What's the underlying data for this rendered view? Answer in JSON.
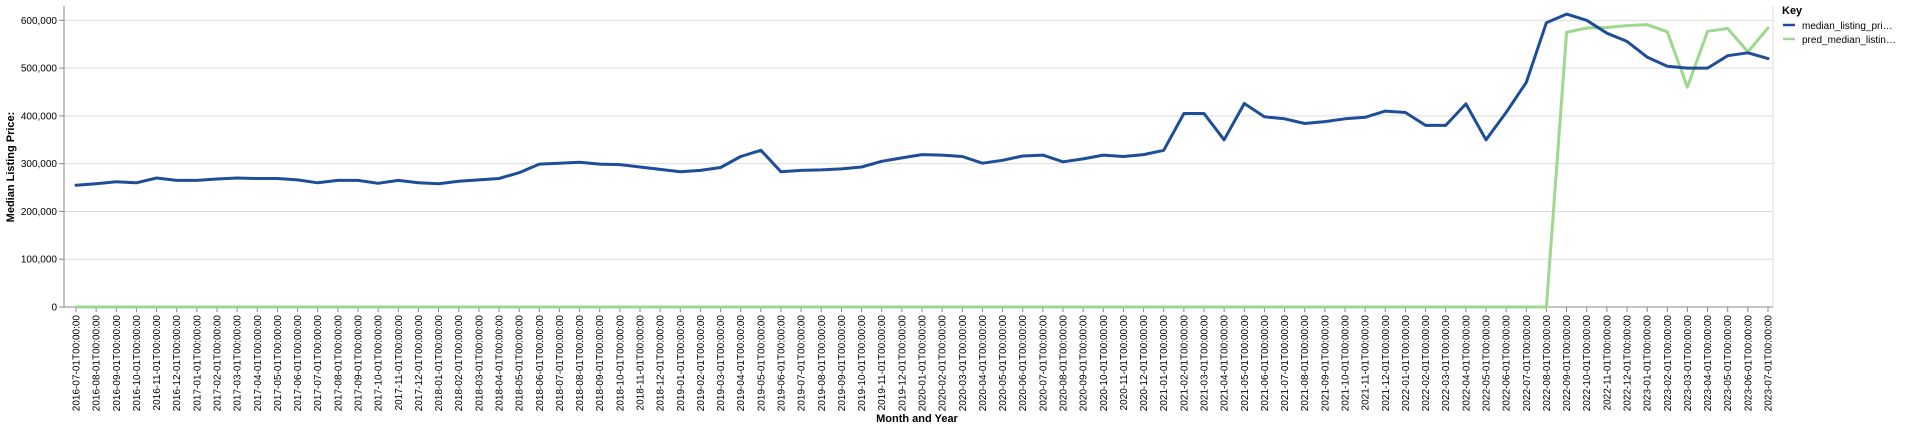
{
  "chart_data": {
    "type": "line",
    "xlabel": "Month and Year",
    "ylabel": "Median Listing Price:",
    "ylim": [
      0,
      630000
    ],
    "yticks": [
      0,
      100000,
      200000,
      300000,
      400000,
      500000,
      600000
    ],
    "ytick_labels": [
      "0",
      "100,000",
      "200,000",
      "300,000",
      "400,000",
      "500,000",
      "600,000"
    ],
    "grid": true,
    "legend": {
      "title": "Key",
      "placement": "top-right",
      "entries": [
        "median_listing_pri…",
        "pred_median_listin…"
      ]
    },
    "x": [
      "2016-07-01T00:00:00",
      "2016-08-01T00:00:00",
      "2016-09-01T00:00:00",
      "2016-10-01T00:00:00",
      "2016-11-01T00:00:00",
      "2016-12-01T00:00:00",
      "2017-01-01T00:00:00",
      "2017-02-01T00:00:00",
      "2017-03-01T00:00:00",
      "2017-04-01T00:00:00",
      "2017-05-01T00:00:00",
      "2017-06-01T00:00:00",
      "2017-07-01T00:00:00",
      "2017-08-01T00:00:00",
      "2017-09-01T00:00:00",
      "2017-10-01T00:00:00",
      "2017-11-01T00:00:00",
      "2017-12-01T00:00:00",
      "2018-01-01T00:00:00",
      "2018-02-01T00:00:00",
      "2018-03-01T00:00:00",
      "2018-04-01T00:00:00",
      "2018-05-01T00:00:00",
      "2018-06-01T00:00:00",
      "2018-07-01T00:00:00",
      "2018-08-01T00:00:00",
      "2018-09-01T00:00:00",
      "2018-10-01T00:00:00",
      "2018-11-01T00:00:00",
      "2018-12-01T00:00:00",
      "2019-01-01T00:00:00",
      "2019-02-01T00:00:00",
      "2019-03-01T00:00:00",
      "2019-04-01T00:00:00",
      "2019-05-01T00:00:00",
      "2019-06-01T00:00:00",
      "2019-07-01T00:00:00",
      "2019-08-01T00:00:00",
      "2019-09-01T00:00:00",
      "2019-10-01T00:00:00",
      "2019-11-01T00:00:00",
      "2019-12-01T00:00:00",
      "2020-01-01T00:00:00",
      "2020-02-01T00:00:00",
      "2020-03-01T00:00:00",
      "2020-04-01T00:00:00",
      "2020-05-01T00:00:00",
      "2020-06-01T00:00:00",
      "2020-07-01T00:00:00",
      "2020-08-01T00:00:00",
      "2020-09-01T00:00:00",
      "2020-10-01T00:00:00",
      "2020-11-01T00:00:00",
      "2020-12-01T00:00:00",
      "2021-01-01T00:00:00",
      "2021-02-01T00:00:00",
      "2021-03-01T00:00:00",
      "2021-04-01T00:00:00",
      "2021-05-01T00:00:00",
      "2021-06-01T00:00:00",
      "2021-07-01T00:00:00",
      "2021-08-01T00:00:00",
      "2021-09-01T00:00:00",
      "2021-10-01T00:00:00",
      "2021-11-01T00:00:00",
      "2021-12-01T00:00:00",
      "2022-01-01T00:00:00",
      "2022-02-01T00:00:00",
      "2022-03-01T00:00:00",
      "2022-04-01T00:00:00",
      "2022-05-01T00:00:00",
      "2022-06-01T00:00:00",
      "2022-07-01T00:00:00",
      "2022-08-01T00:00:00",
      "2022-09-01T00:00:00",
      "2022-10-01T00:00:00",
      "2022-11-01T00:00:00",
      "2022-12-01T00:00:00",
      "2023-01-01T00:00:00",
      "2023-02-01T00:00:00",
      "2023-03-01T00:00:00",
      "2023-04-01T00:00:00",
      "2023-05-01T00:00:00",
      "2023-06-01T00:00:00",
      "2023-07-01T00:00:00"
    ],
    "series": [
      {
        "name": "median_listing_pri…",
        "color": "#1f4e99",
        "values": [
          255000,
          258000,
          262000,
          260000,
          270000,
          265000,
          265000,
          268000,
          270000,
          269000,
          269000,
          266000,
          260000,
          265000,
          265000,
          259000,
          265000,
          260000,
          258000,
          263000,
          266000,
          269000,
          281000,
          299000,
          301000,
          303000,
          299000,
          298000,
          293000,
          288000,
          283000,
          286000,
          292000,
          315000,
          328000,
          283000,
          286000,
          287000,
          289000,
          293000,
          305000,
          312000,
          319000,
          318000,
          315000,
          301000,
          307000,
          316000,
          318000,
          304000,
          310000,
          318000,
          315000,
          319000,
          328000,
          405000,
          405000,
          350000,
          426000,
          398000,
          394000,
          384000,
          388000,
          394000,
          397000,
          410000,
          407000,
          380000,
          380000,
          425000,
          350000,
          407000,
          470000,
          595000,
          613000,
          600000,
          573000,
          556000,
          523000,
          504000,
          500000,
          500000,
          526000,
          532000,
          520000
        ]
      },
      {
        "name": "pred_median_listin…",
        "color": "#9ed88c",
        "values": [
          0,
          0,
          0,
          0,
          0,
          0,
          0,
          0,
          0,
          0,
          0,
          0,
          0,
          0,
          0,
          0,
          0,
          0,
          0,
          0,
          0,
          0,
          0,
          0,
          0,
          0,
          0,
          0,
          0,
          0,
          0,
          0,
          0,
          0,
          0,
          0,
          0,
          0,
          0,
          0,
          0,
          0,
          0,
          0,
          0,
          0,
          0,
          0,
          0,
          0,
          0,
          0,
          0,
          0,
          0,
          0,
          0,
          0,
          0,
          0,
          0,
          0,
          0,
          0,
          0,
          0,
          0,
          0,
          0,
          0,
          0,
          0,
          0,
          0,
          575000,
          584000,
          585000,
          589000,
          591000,
          576000,
          460000,
          577000,
          583000,
          534000,
          584000
        ]
      }
    ]
  },
  "colors": {
    "grid": "#dddddd",
    "axis": "#888888"
  }
}
